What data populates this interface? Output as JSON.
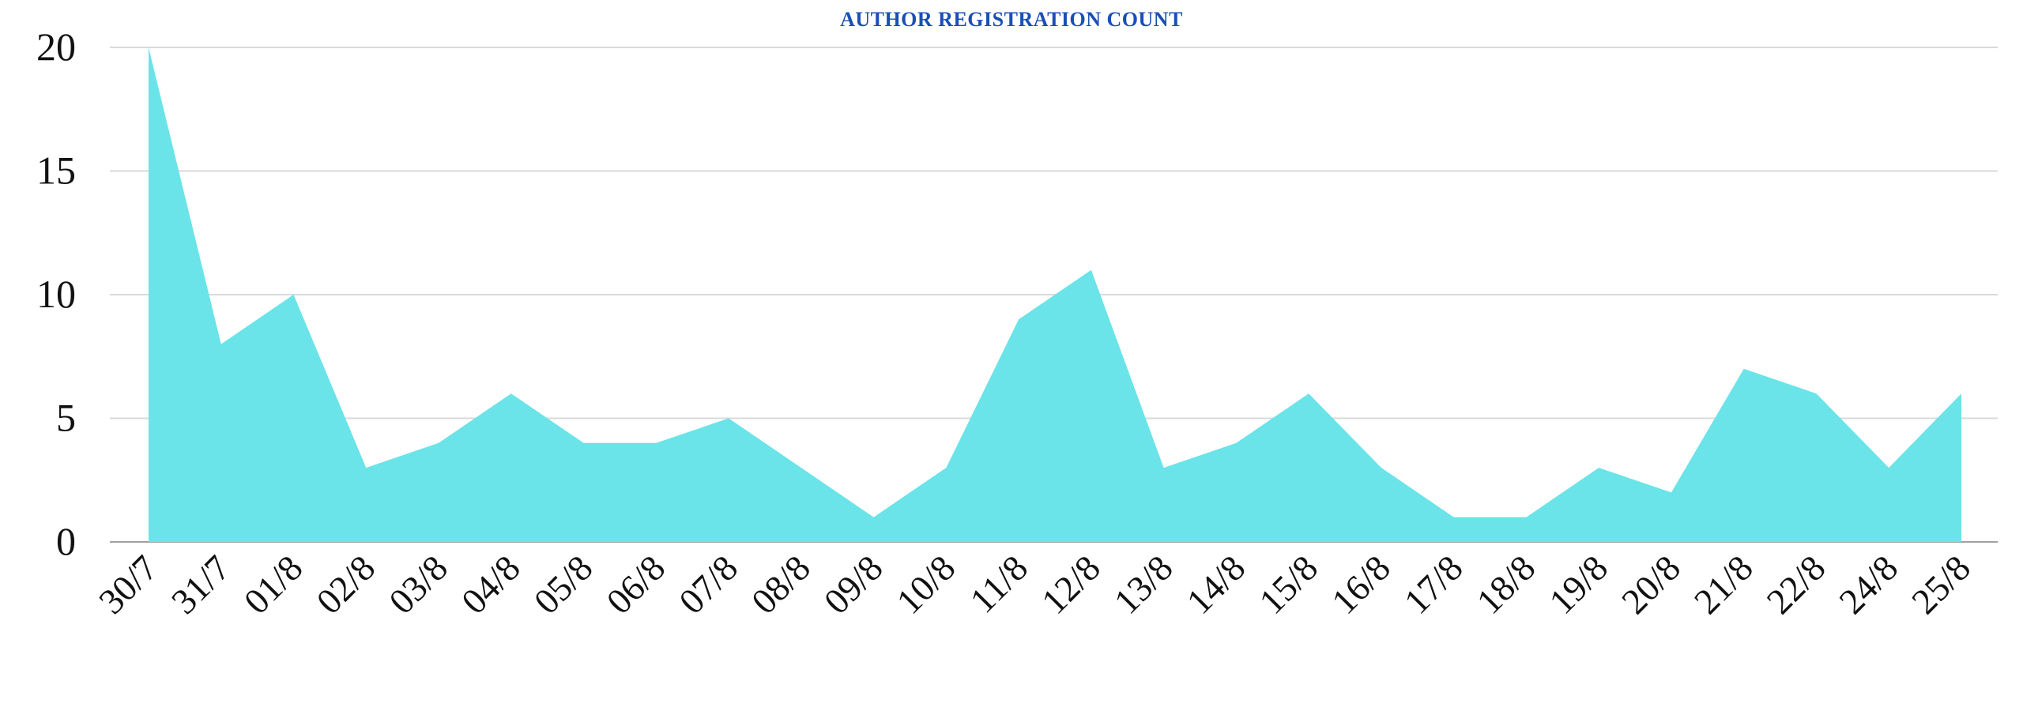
{
  "chart_data": {
    "type": "area",
    "title": "AUTHOR REGISTRATION COUNT",
    "xlabel": "",
    "ylabel": "",
    "categories": [
      "30/7",
      "31/7",
      "01/8",
      "02/8",
      "03/8",
      "04/8",
      "05/8",
      "06/8",
      "07/8",
      "08/8",
      "09/8",
      "10/8",
      "11/8",
      "12/8",
      "13/8",
      "14/8",
      "15/8",
      "16/8",
      "17/8",
      "18/8",
      "19/8",
      "20/8",
      "21/8",
      "22/8",
      "24/8",
      "25/8"
    ],
    "values": [
      20,
      8,
      10,
      3,
      4,
      6,
      4,
      4,
      5,
      3,
      1,
      3,
      9,
      11,
      3,
      4,
      6,
      3,
      1,
      1,
      3,
      2,
      7,
      6,
      3,
      6
    ],
    "ylim": [
      0,
      20
    ],
    "yticks": [
      0,
      5,
      10,
      15,
      20
    ],
    "grid": true,
    "legend": "none",
    "colors": {
      "fill": "#6ae4e8",
      "grid": "#d9d9d9",
      "axis": "#a0a0a0",
      "title": "#1a4fb5"
    }
  }
}
